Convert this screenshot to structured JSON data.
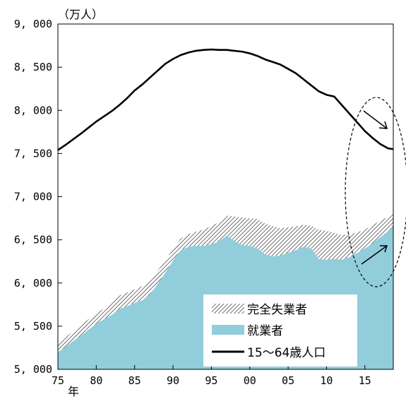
{
  "chart_data": {
    "type": "area",
    "unit_label": "（万人）",
    "x_axis_suffix": "年",
    "xlim": [
      1975,
      2018.7
    ],
    "ylim": [
      5000,
      9000
    ],
    "x_ticks": [
      1975,
      1980,
      1985,
      1990,
      1995,
      2000,
      2005,
      2010,
      2015
    ],
    "x_tick_labels": [
      "75",
      "80",
      "85",
      "90",
      "95",
      "00",
      "05",
      "10",
      "15"
    ],
    "y_ticks": [
      5000,
      5500,
      6000,
      6500,
      7000,
      7500,
      8000,
      8500,
      9000
    ],
    "y_tick_labels": [
      "5, 000",
      "5, 500",
      "6, 000",
      "6, 500",
      "7, 000",
      "7, 500",
      "8, 000",
      "8, 500",
      "9, 000"
    ],
    "grid": false,
    "legend_position": "bottom-right",
    "series": [
      {
        "name": "15～64歳人口",
        "kind": "line",
        "color": "#000000",
        "x": [
          1975,
          1976,
          1977,
          1978,
          1979,
          1980,
          1981,
          1982,
          1983,
          1984,
          1985,
          1986,
          1987,
          1988,
          1989,
          1990,
          1991,
          1992,
          1993,
          1994,
          1995,
          1996,
          1997,
          1998,
          1999,
          2000,
          2001,
          2002,
          2003,
          2004,
          2005,
          2006,
          2007,
          2008,
          2009,
          2010,
          2011,
          2012,
          2013,
          2014,
          2015,
          2016,
          2017,
          2018,
          2018.7
        ],
        "values": [
          7540,
          7600,
          7665,
          7730,
          7800,
          7870,
          7930,
          7990,
          8060,
          8140,
          8230,
          8300,
          8380,
          8460,
          8540,
          8595,
          8640,
          8670,
          8690,
          8700,
          8705,
          8700,
          8700,
          8690,
          8680,
          8660,
          8630,
          8590,
          8560,
          8530,
          8480,
          8430,
          8360,
          8290,
          8220,
          8180,
          8160,
          8060,
          7960,
          7860,
          7760,
          7680,
          7610,
          7560,
          7550
        ]
      },
      {
        "name": "完全失業者",
        "kind": "stacked-area",
        "pattern": "diagonal-hatch",
        "x": [
          1975,
          1976,
          1977,
          1978,
          1979,
          1980,
          1981,
          1982,
          1983,
          1984,
          1985,
          1986,
          1987,
          1988,
          1989,
          1990,
          1991,
          1992,
          1993,
          1994,
          1995,
          1996,
          1997,
          1998,
          1999,
          2000,
          2001,
          2002,
          2003,
          2004,
          2005,
          2006,
          2007,
          2008,
          2009,
          2010,
          2011,
          2012,
          2013,
          2014,
          2015,
          2016,
          2017,
          2018,
          2018.7
        ],
        "values": [
          100,
          110,
          110,
          125,
          120,
          115,
          125,
          135,
          155,
          160,
          155,
          165,
          170,
          155,
          140,
          135,
          135,
          145,
          165,
          190,
          210,
          225,
          230,
          280,
          320,
          320,
          340,
          360,
          350,
          315,
          295,
          275,
          255,
          265,
          335,
          335,
          300,
          285,
          265,
          235,
          220,
          210,
          190,
          165,
          160
        ]
      },
      {
        "name": "就業者",
        "kind": "stacked-area",
        "color": "#92cddc",
        "x": [
          1975,
          1976,
          1977,
          1978,
          1979,
          1980,
          1981,
          1982,
          1983,
          1984,
          1985,
          1986,
          1987,
          1988,
          1989,
          1990,
          1991,
          1992,
          1993,
          1994,
          1995,
          1996,
          1997,
          1998,
          1999,
          2000,
          2001,
          2002,
          2003,
          2004,
          2005,
          2006,
          2007,
          2008,
          2009,
          2010,
          2011,
          2012,
          2013,
          2014,
          2015,
          2016,
          2017,
          2018,
          2018.7
        ],
        "values": [
          5200,
          5260,
          5330,
          5390,
          5460,
          5530,
          5580,
          5630,
          5700,
          5730,
          5770,
          5800,
          5870,
          5990,
          6120,
          6260,
          6380,
          6420,
          6430,
          6430,
          6450,
          6480,
          6550,
          6490,
          6440,
          6430,
          6400,
          6330,
          6310,
          6320,
          6350,
          6380,
          6420,
          6400,
          6280,
          6270,
          6280,
          6270,
          6300,
          6350,
          6400,
          6460,
          6530,
          6600,
          6650
        ]
      }
    ],
    "legend": [
      "完全失業者",
      "就業者",
      "15～64歳人口"
    ]
  }
}
